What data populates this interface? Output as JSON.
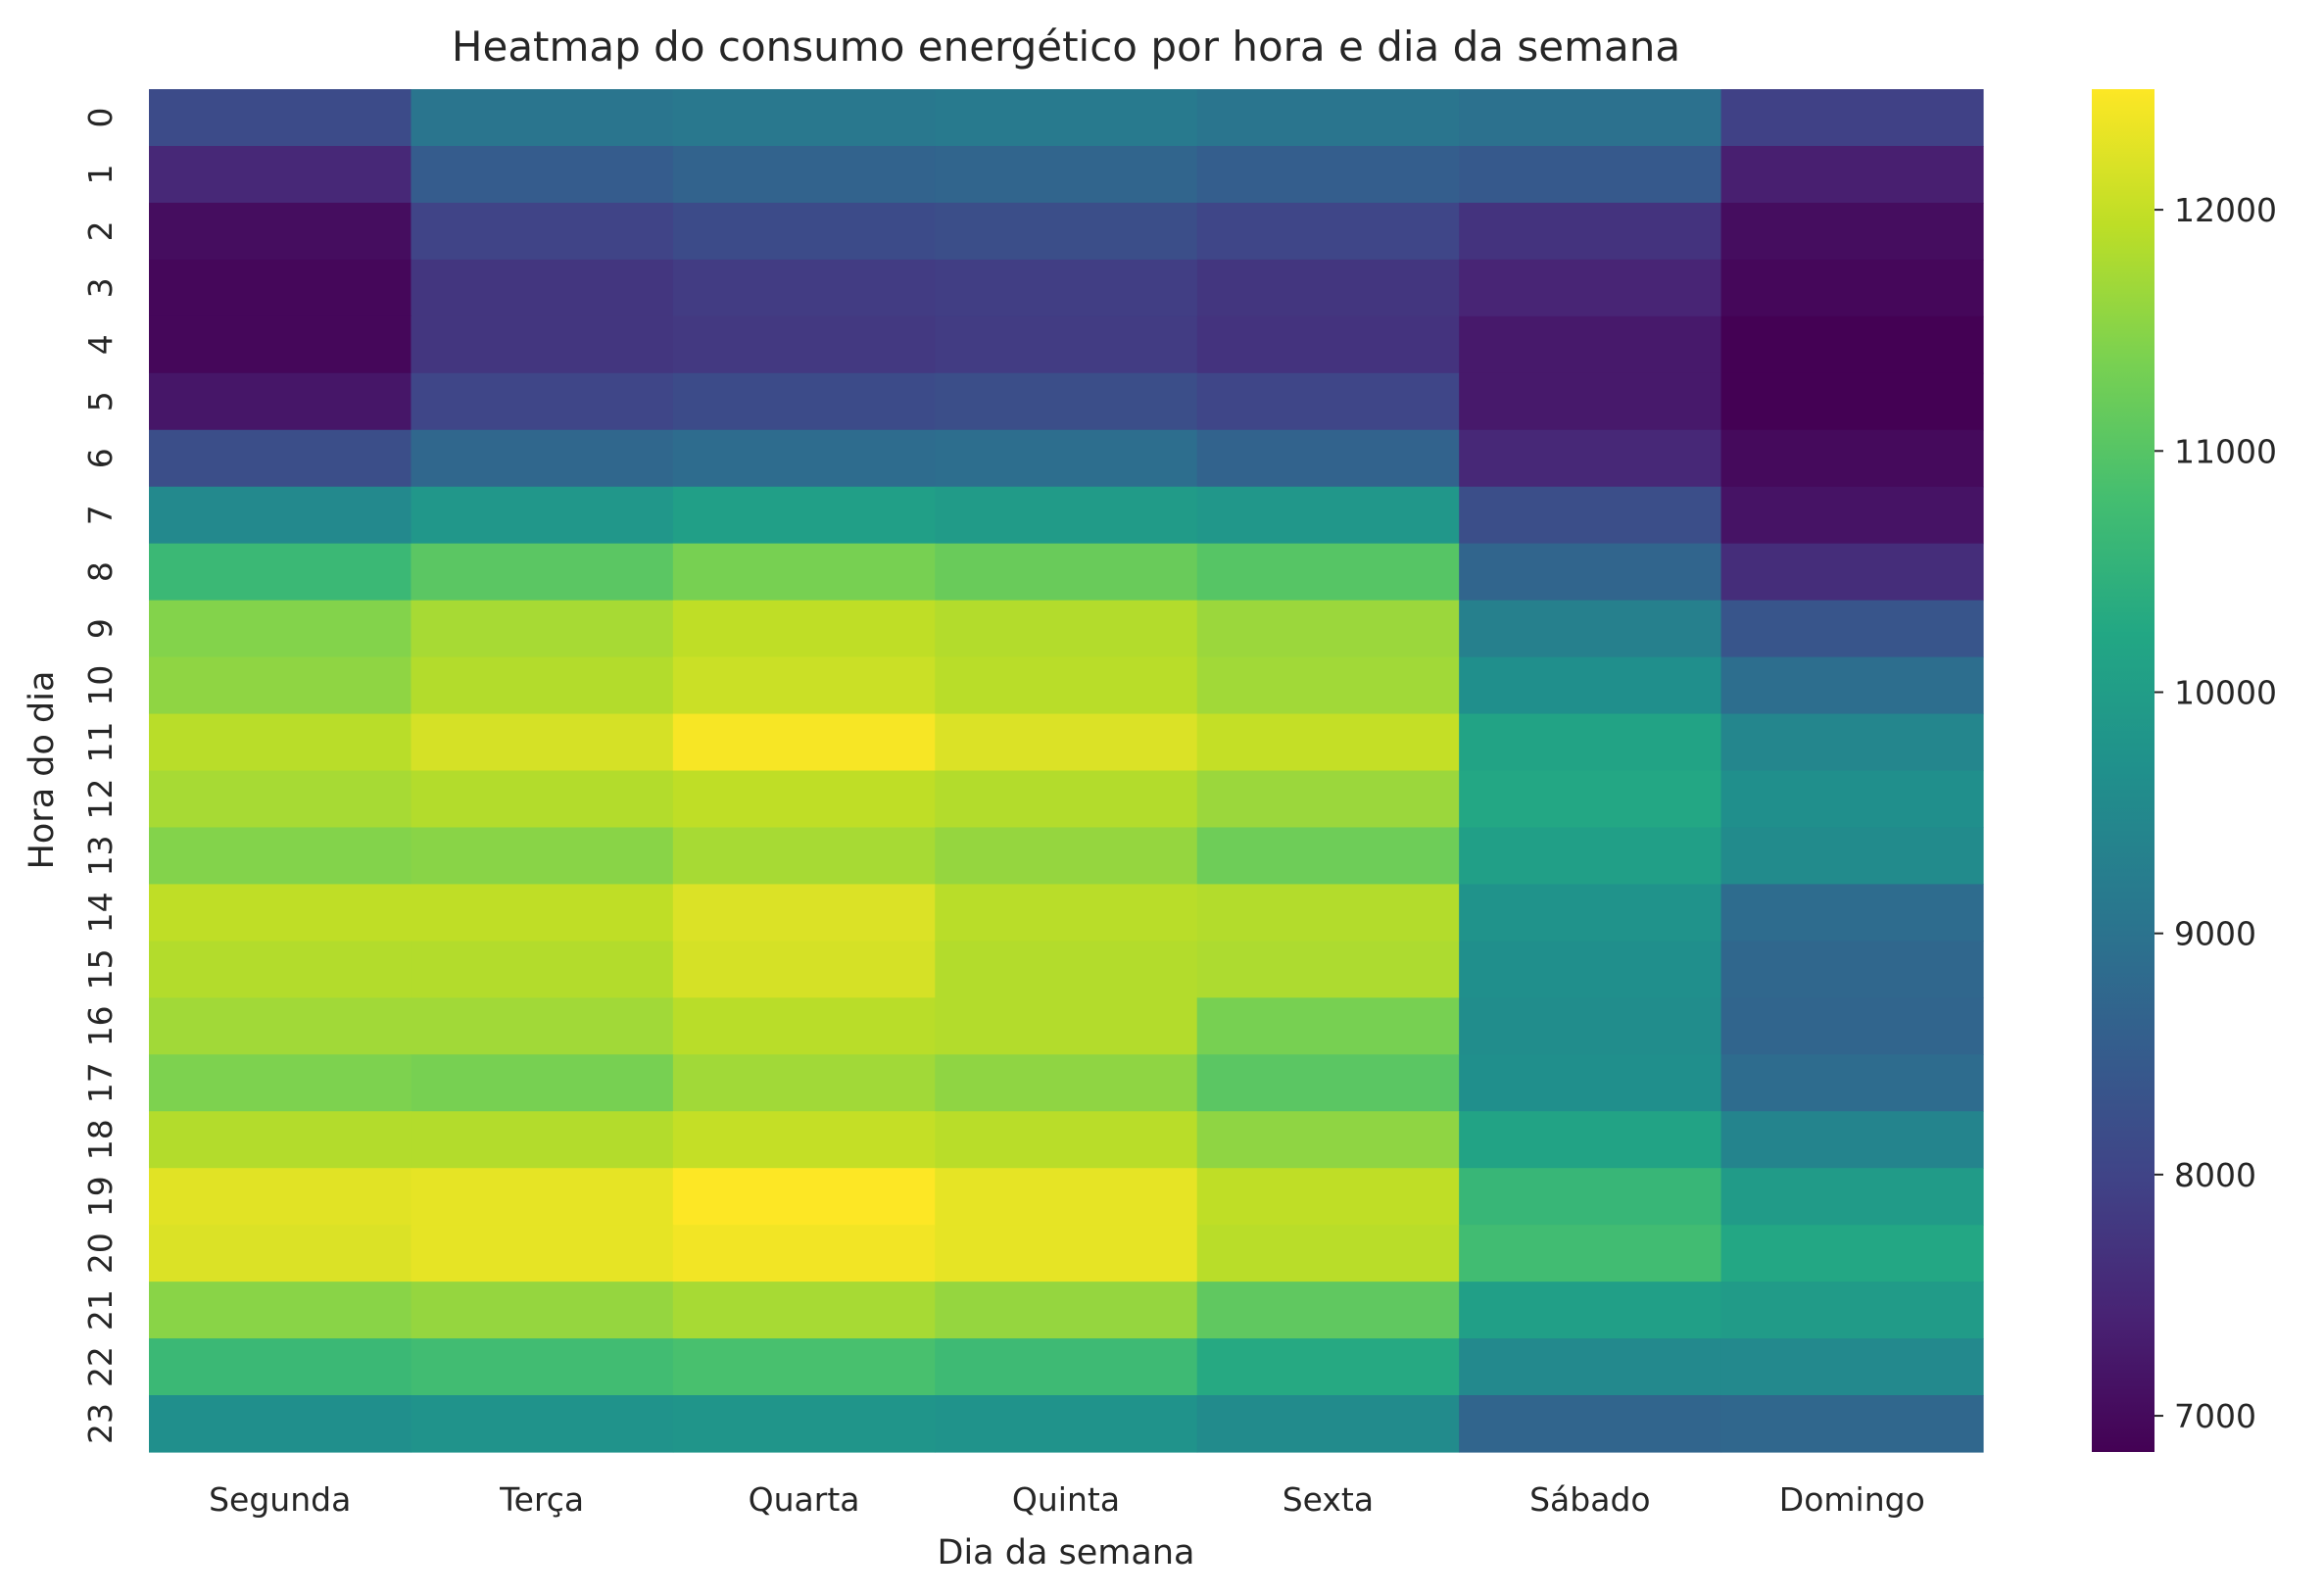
{
  "chart_data": {
    "type": "heatmap",
    "title": "Heatmap do consumo energético por hora e dia da semana",
    "xlabel": "Dia da semana",
    "ylabel": "Hora do dia",
    "colormap": "viridis",
    "color_range": [
      6850,
      12500
    ],
    "colorbar_ticks": [
      "7000",
      "8000",
      "9000",
      "10000",
      "11000",
      "12000"
    ],
    "colorbar_tick_values": [
      7000,
      8000,
      9000,
      10000,
      11000,
      12000
    ],
    "x_categories": [
      "Segunda",
      "Terça",
      "Quarta",
      "Quinta",
      "Sexta",
      "Sábado",
      "Domingo"
    ],
    "y_categories": [
      "0",
      "1",
      "2",
      "3",
      "4",
      "5",
      "6",
      "7",
      "8",
      "9",
      "10",
      "11",
      "12",
      "13",
      "14",
      "15",
      "16",
      "17",
      "18",
      "19",
      "20",
      "21",
      "22",
      "23"
    ],
    "values": [
      [
        8150,
        9050,
        9100,
        9150,
        9050,
        8950,
        7950
      ],
      [
        7500,
        8500,
        8650,
        8700,
        8550,
        8450,
        7350
      ],
      [
        7050,
        8000,
        8150,
        8200,
        8050,
        7700,
        7050
      ],
      [
        6950,
        7750,
        7850,
        7900,
        7750,
        7450,
        6950
      ],
      [
        6950,
        7750,
        7800,
        7850,
        7700,
        7250,
        6850
      ],
      [
        7200,
        8050,
        8150,
        8200,
        8050,
        7250,
        6850
      ],
      [
        8200,
        8750,
        8850,
        8900,
        8650,
        7500,
        7000
      ],
      [
        9500,
        9850,
        10050,
        9950,
        9850,
        8200,
        7150
      ],
      [
        10650,
        11050,
        11350,
        11200,
        11000,
        8700,
        7600
      ],
      [
        11450,
        11750,
        11950,
        11850,
        11650,
        9300,
        8350
      ],
      [
        11550,
        11850,
        12050,
        11900,
        11700,
        9650,
        8900
      ],
      [
        11900,
        12150,
        12450,
        12200,
        12000,
        10150,
        9450
      ],
      [
        11750,
        11850,
        11950,
        11850,
        11650,
        10250,
        9650
      ],
      [
        11450,
        11500,
        11750,
        11600,
        11250,
        10050,
        9550
      ],
      [
        11950,
        11950,
        12200,
        11900,
        11850,
        9750,
        8850
      ],
      [
        11850,
        11850,
        12150,
        11850,
        11800,
        9650,
        8750
      ],
      [
        11700,
        11700,
        11900,
        11850,
        11350,
        9600,
        8700
      ],
      [
        11400,
        11350,
        11700,
        11550,
        11050,
        9650,
        8850
      ],
      [
        11850,
        11850,
        12000,
        11900,
        11550,
        10150,
        9400
      ],
      [
        12250,
        12300,
        12550,
        12300,
        11950,
        10600,
        9950
      ],
      [
        12200,
        12300,
        12400,
        12300,
        11900,
        10750,
        10250
      ],
      [
        11500,
        11600,
        11750,
        11600,
        11100,
        10050,
        9950
      ],
      [
        10650,
        10750,
        10850,
        10700,
        10300,
        9500,
        9500
      ],
      [
        9650,
        9750,
        9800,
        9750,
        9550,
        8700,
        8750
      ]
    ]
  }
}
